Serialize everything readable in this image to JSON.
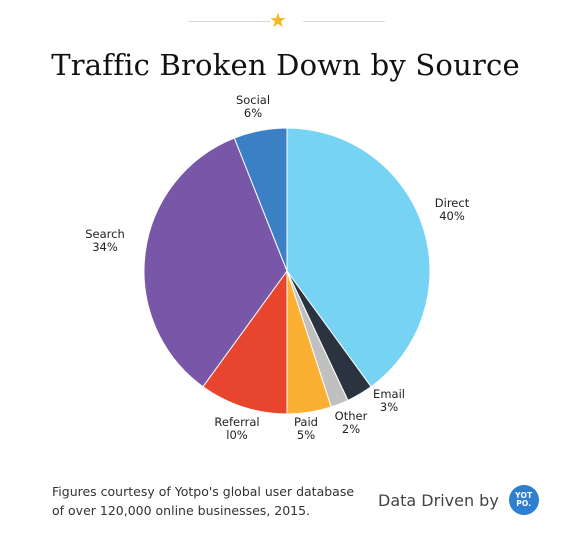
{
  "header": {
    "star_icon": "star-icon",
    "star_color": "#f5b820"
  },
  "chart_data": {
    "type": "pie",
    "title": "Traffic Broken Down by Source",
    "slices": [
      {
        "name": "Direct",
        "value_label": "40%",
        "value": 40,
        "color": "#76d3f4"
      },
      {
        "name": "Email",
        "value_label": "3%",
        "value": 3,
        "color": "#2b3340"
      },
      {
        "name": "Other",
        "value_label": "2%",
        "value": 2,
        "color": "#c0c0c0"
      },
      {
        "name": "Paid",
        "value_label": "5%",
        "value": 5,
        "color": "#fbb033"
      },
      {
        "name": "Referral",
        "value_label": "l0%",
        "value": 10,
        "color": "#e8452f"
      },
      {
        "name": "Search",
        "value_label": "34%",
        "value": 34,
        "color": "#7957a8"
      },
      {
        "name": "Social",
        "value_label": "6%",
        "value": 6,
        "color": "#3b7fc4"
      }
    ]
  },
  "footer": {
    "note_line1": "Figures courtesy of Yotpo's global user database",
    "note_line2": "of over 120,000 online businesses, 2015.",
    "brand_text": "Data Driven by",
    "logo_line1": "YOT",
    "logo_line2": "PO."
  }
}
